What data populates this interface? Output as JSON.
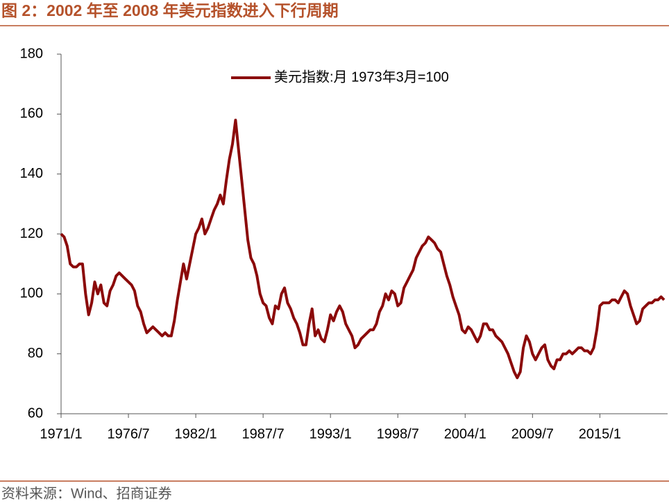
{
  "title": "图 2：2002 年至 2008 年美元指数进入下行周期",
  "source": "资料来源：Wind、招商证券",
  "chart_data": {
    "type": "line",
    "categories": [
      "1971/1",
      null,
      null,
      null,
      null,
      null,
      null,
      null,
      null,
      null,
      null,
      null,
      null,
      null,
      null,
      null,
      null,
      null,
      null,
      null,
      null,
      null,
      "1976/7",
      null,
      null,
      null,
      null,
      null,
      null,
      null,
      null,
      null,
      null,
      null,
      null,
      null,
      null,
      null,
      null,
      null,
      null,
      null,
      null,
      null,
      "1982/1",
      null,
      null,
      null,
      null,
      null,
      null,
      null,
      null,
      null,
      null,
      null,
      null,
      null,
      null,
      null,
      null,
      null,
      null,
      null,
      null,
      null,
      "1987/7",
      null,
      null,
      null,
      null,
      null,
      null,
      null,
      null,
      null,
      null,
      null,
      null,
      null,
      null,
      null,
      null,
      null,
      null,
      null,
      null,
      null,
      "1993/1",
      null,
      null,
      null,
      null,
      null,
      null,
      null,
      null,
      null,
      null,
      null,
      null,
      null,
      null,
      null,
      null,
      null,
      null,
      null,
      null,
      null,
      "1998/7",
      null,
      null,
      null,
      null,
      null,
      null,
      null,
      null,
      null,
      null,
      null,
      null,
      null,
      null,
      null,
      null,
      null,
      null,
      null,
      null,
      null,
      "2004/1",
      null,
      null,
      null,
      null,
      null,
      null,
      null,
      null,
      null,
      null,
      null,
      null,
      null,
      null,
      null,
      null,
      null,
      null,
      null,
      null,
      null,
      "2009/7",
      null,
      null,
      null,
      null,
      null,
      null,
      null,
      null,
      null,
      null,
      null,
      null,
      null,
      null,
      null,
      null,
      null,
      null,
      null,
      null,
      null,
      "2015/1",
      null,
      null,
      null,
      null,
      null,
      null,
      null,
      null,
      null,
      null,
      null,
      null,
      null,
      null,
      null,
      null,
      null,
      null,
      null,
      null,
      null
    ],
    "series": [
      {
        "name": "美元指数:月 1973年3月=100",
        "color": "#8b0a0a",
        "values": [
          120,
          119,
          116,
          110,
          109,
          109,
          110,
          110,
          100,
          93,
          97,
          104,
          100,
          103,
          97,
          96,
          101,
          103,
          106,
          107,
          106,
          105,
          104,
          103,
          101,
          96,
          94,
          90,
          87,
          88,
          89,
          88,
          87,
          86,
          87,
          86,
          86,
          91,
          98,
          104,
          110,
          105,
          110,
          115,
          120,
          122,
          125,
          120,
          122,
          125,
          128,
          130,
          133,
          130,
          138,
          145,
          150,
          158,
          148,
          138,
          128,
          118,
          112,
          110,
          106,
          100,
          97,
          96,
          92,
          90,
          96,
          95,
          100,
          102,
          97,
          95,
          92,
          90,
          87,
          83,
          83,
          90,
          95,
          86,
          88,
          85,
          84,
          88,
          93,
          91,
          94,
          96,
          94,
          90,
          88,
          86,
          82,
          83,
          85,
          86,
          87,
          88,
          88,
          90,
          94,
          96,
          100,
          98,
          101,
          100,
          96,
          97,
          102,
          104,
          106,
          108,
          112,
          114,
          116,
          117,
          119,
          118,
          117,
          115,
          114,
          110,
          106,
          103,
          99,
          96,
          93,
          88,
          87,
          89,
          88,
          86,
          84,
          86,
          90,
          90,
          88,
          88,
          86,
          85,
          84,
          82,
          80,
          77,
          74,
          72,
          74,
          82,
          86,
          84,
          80,
          78,
          80,
          82,
          83,
          78,
          76,
          75,
          78,
          78,
          80,
          80,
          81,
          80,
          81,
          82,
          82,
          81,
          81,
          80,
          82,
          88,
          96,
          97,
          97,
          97,
          98,
          98,
          97,
          99,
          101,
          100,
          96,
          93,
          90,
          91,
          95,
          96,
          97,
          97,
          98,
          98,
          99,
          98
        ]
      }
    ],
    "ylim": [
      60,
      180
    ],
    "yticks": [
      60,
      80,
      100,
      120,
      140,
      160,
      180
    ]
  }
}
